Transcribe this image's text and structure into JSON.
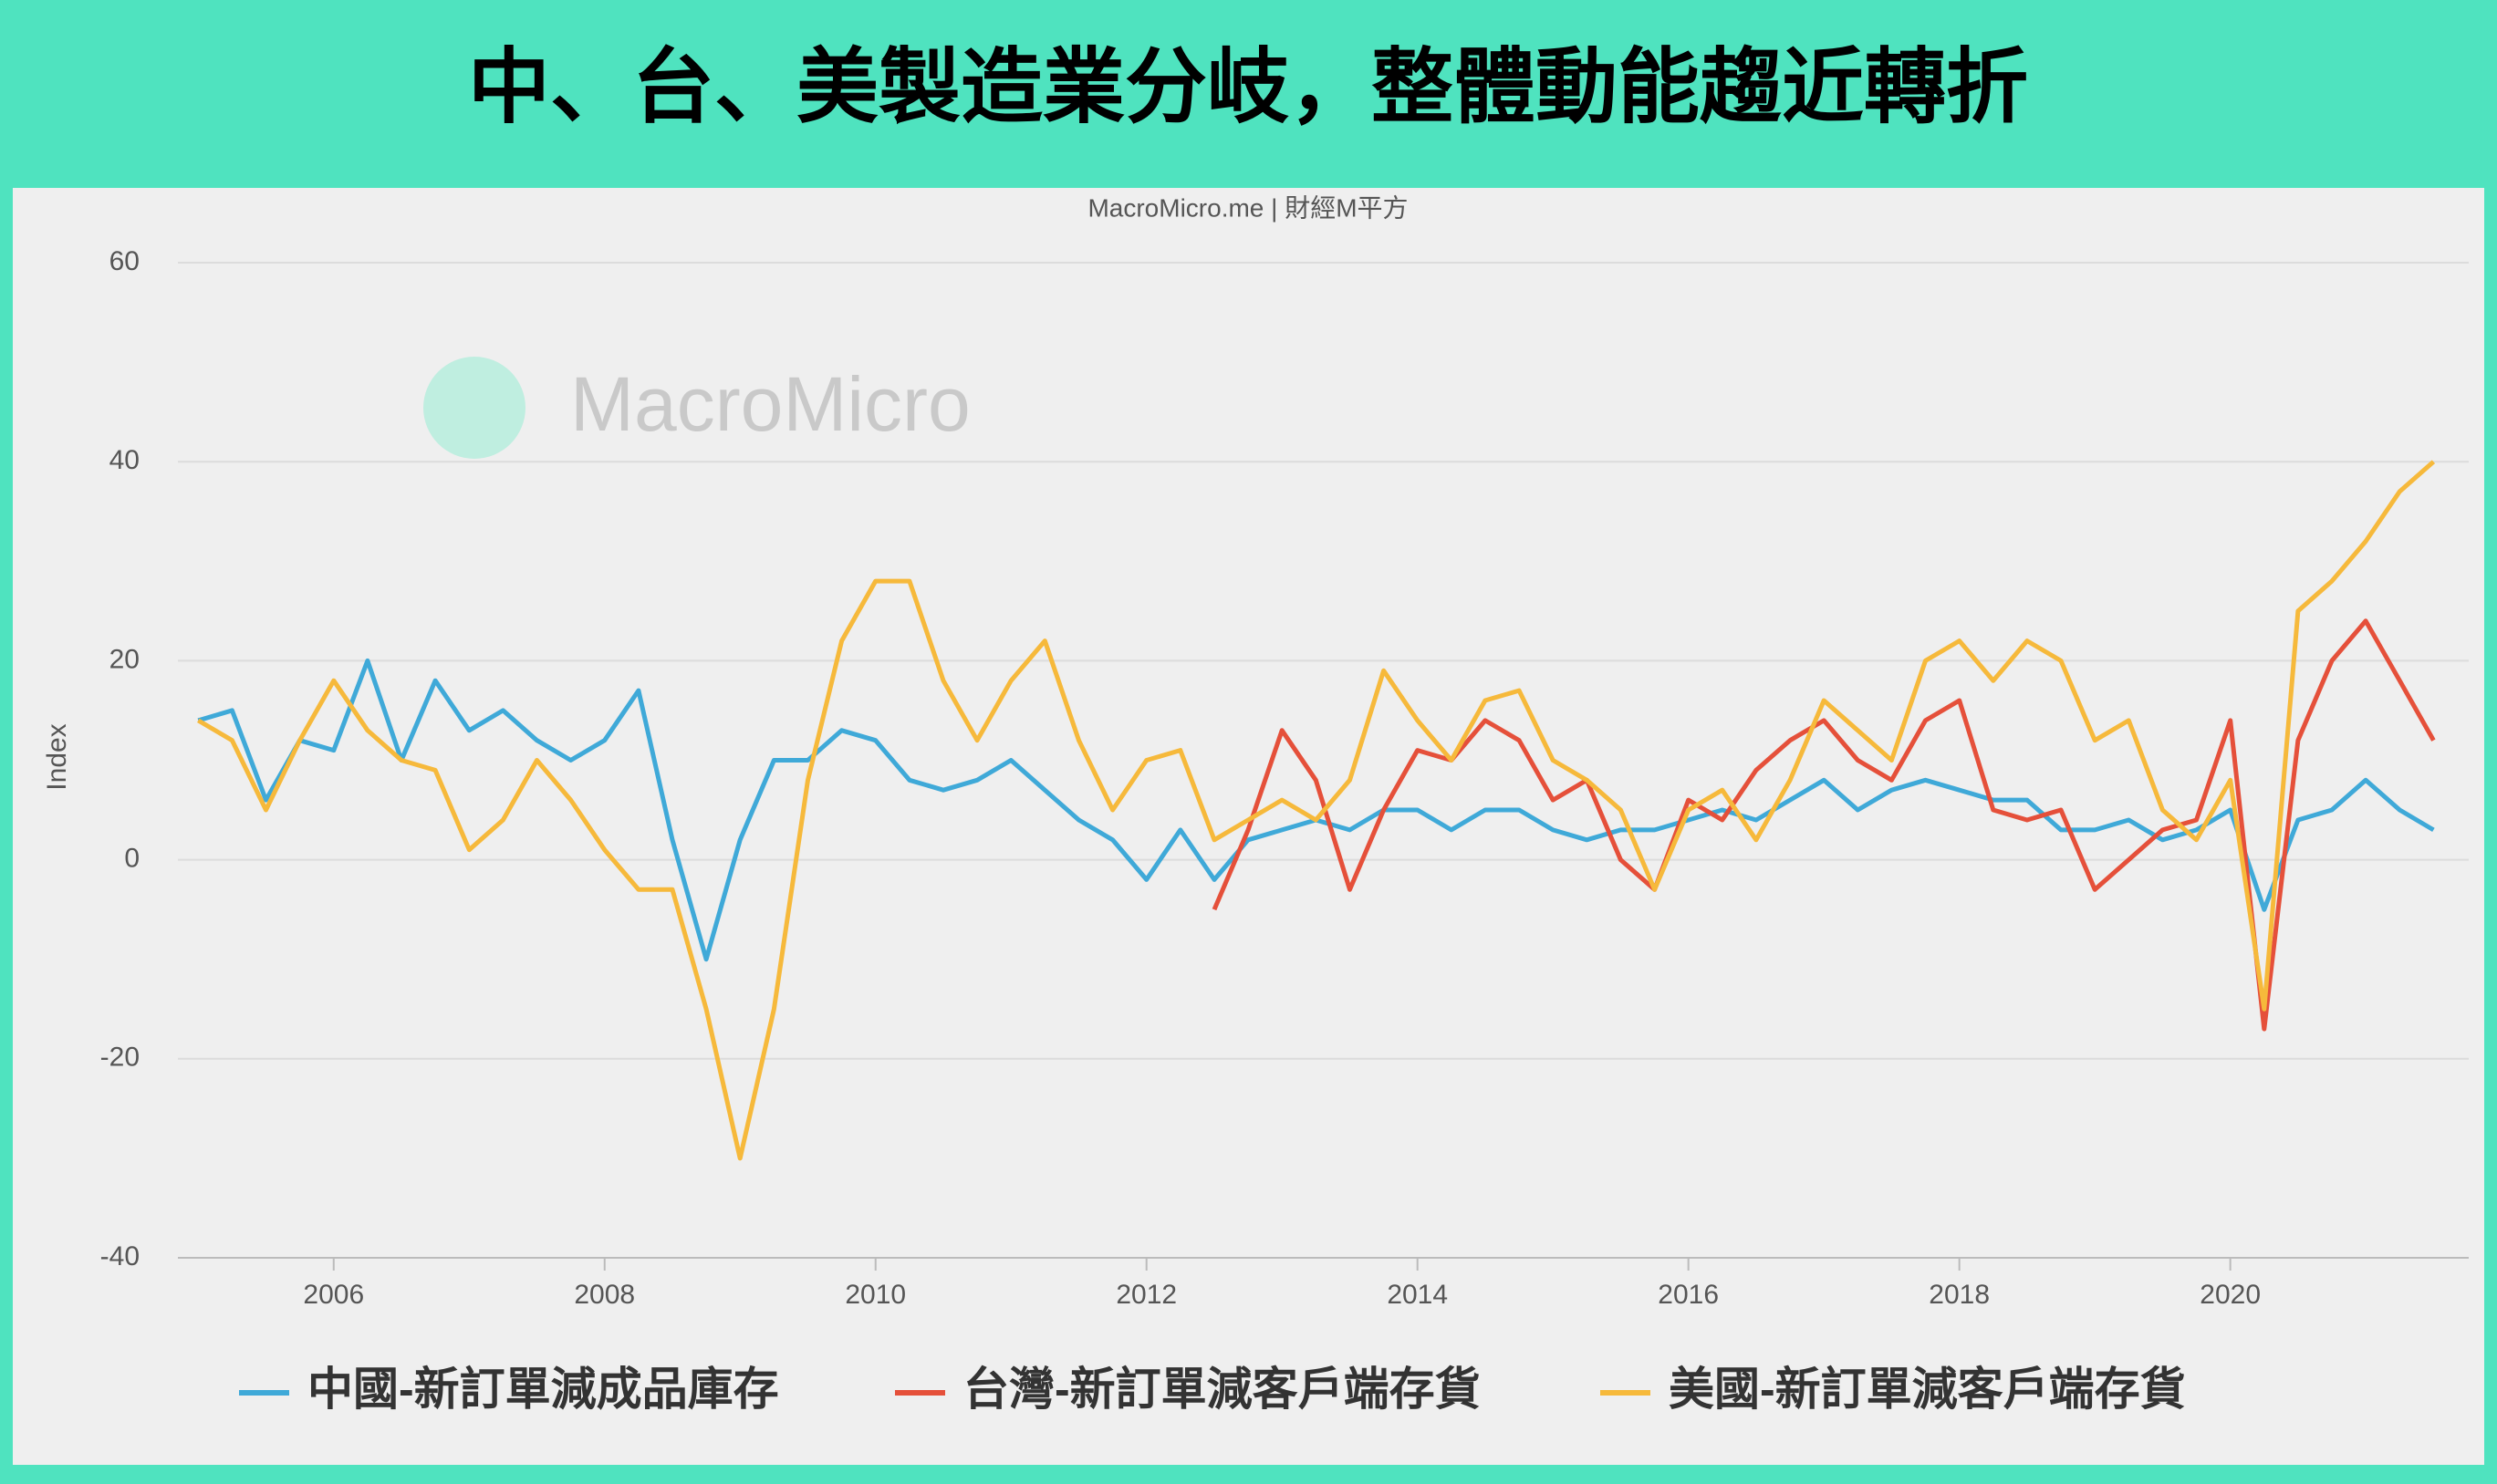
{
  "chart_data": {
    "type": "line",
    "title": "中、台、美製造業分岐，整體動能趨近轉折",
    "subtitle": "MacroMicro.me | 財經M平方",
    "watermark": "MacroMicro",
    "y_label": "Index",
    "x": [
      2005,
      2005.25,
      2005.5,
      2005.75,
      2006,
      2006.25,
      2006.5,
      2006.75,
      2007,
      2007.25,
      2007.5,
      2007.75,
      2008,
      2008.25,
      2008.5,
      2008.75,
      2009,
      2009.25,
      2009.5,
      2009.75,
      2010,
      2010.25,
      2010.5,
      2010.75,
      2011,
      2011.25,
      2011.5,
      2011.75,
      2012,
      2012.25,
      2012.5,
      2012.75,
      2013,
      2013.25,
      2013.5,
      2013.75,
      2014,
      2014.25,
      2014.5,
      2014.75,
      2015,
      2015.25,
      2015.5,
      2015.75,
      2016,
      2016.25,
      2016.5,
      2016.75,
      2017,
      2017.25,
      2017.5,
      2017.75,
      2018,
      2018.25,
      2018.5,
      2018.75,
      2019,
      2019.25,
      2019.5,
      2019.75,
      2020,
      2020.25,
      2020.5,
      2020.75,
      2021,
      2021.25,
      2021.5
    ],
    "series": [
      {
        "name": "中國-新訂單減成品庫存",
        "color": "#3fa9d8",
        "values": [
          14,
          15,
          6,
          12,
          11,
          20,
          10,
          18,
          13,
          15,
          12,
          10,
          12,
          17,
          2,
          -10,
          2,
          10,
          10,
          13,
          12,
          8,
          7,
          8,
          10,
          7,
          4,
          2,
          -2,
          3,
          -2,
          2,
          3,
          4,
          3,
          5,
          5,
          3,
          5,
          5,
          3,
          2,
          3,
          3,
          4,
          5,
          4,
          6,
          8,
          5,
          7,
          8,
          7,
          6,
          6,
          3,
          3,
          4,
          2,
          3,
          5,
          -5,
          4,
          5,
          8,
          5,
          3
        ]
      },
      {
        "name": "台灣-新訂單減客戶端存貨",
        "color": "#e5503a",
        "values": [
          null,
          null,
          null,
          null,
          null,
          null,
          null,
          null,
          null,
          null,
          null,
          null,
          null,
          null,
          null,
          null,
          null,
          null,
          null,
          null,
          null,
          null,
          null,
          null,
          null,
          null,
          null,
          null,
          null,
          null,
          -5,
          3,
          13,
          8,
          -3,
          5,
          11,
          10,
          14,
          12,
          6,
          8,
          0,
          -3,
          6,
          4,
          9,
          12,
          14,
          10,
          8,
          14,
          16,
          5,
          4,
          5,
          -3,
          0,
          3,
          4,
          14,
          -17,
          12,
          20,
          24,
          18,
          12
        ]
      },
      {
        "name": "美國-新訂單減客戶端存貨",
        "color": "#f6b93b",
        "values": [
          14,
          12,
          5,
          12,
          18,
          13,
          10,
          9,
          1,
          4,
          10,
          6,
          1,
          -3,
          -3,
          -15,
          -30,
          -15,
          8,
          22,
          28,
          28,
          18,
          12,
          18,
          22,
          12,
          5,
          10,
          11,
          2,
          4,
          6,
          4,
          8,
          19,
          14,
          10,
          16,
          17,
          10,
          8,
          5,
          -3,
          5,
          7,
          2,
          8,
          16,
          13,
          10,
          20,
          22,
          18,
          22,
          20,
          12,
          14,
          5,
          2,
          8,
          -15,
          25,
          28,
          32,
          37,
          40
        ]
      }
    ],
    "xlim": [
      2004.85,
      2021.76
    ],
    "xticks": [
      2006,
      2008,
      2010,
      2012,
      2014,
      2016,
      2018,
      2020
    ],
    "ylim": [
      -40,
      60
    ],
    "yticks": [
      -40,
      -20,
      0,
      20,
      40,
      60
    ],
    "grid": true
  }
}
